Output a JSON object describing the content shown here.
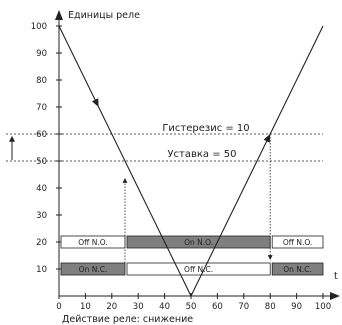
{
  "y_axis_title": "Единицы реле",
  "x_axis_title": "t",
  "caption": "Действие реле: снижение",
  "hysteresis_label": "Гистерезис = 10",
  "setpoint_label": "Уставка = 50",
  "y_ticks": [
    "100",
    "90",
    "80",
    "70",
    "60",
    "50",
    "40",
    "30",
    "20",
    "10"
  ],
  "x_ticks": [
    "0",
    "10",
    "20",
    "30",
    "40",
    "50",
    "60",
    "70",
    "80",
    "90",
    "100"
  ],
  "chart_data": {
    "type": "line",
    "xlim": [
      0,
      100
    ],
    "ylim": [
      0,
      100
    ],
    "series": [
      {
        "x": [
          0,
          50,
          100
        ],
        "y": [
          100,
          0,
          100
        ]
      }
    ],
    "thresholds": {
      "setpoint": 50,
      "upper": 60
    },
    "switch_points_x": [
      25,
      80
    ],
    "no_row": {
      "level": 20,
      "segments": [
        {
          "label": "Off N.O.",
          "x": [
            0,
            25
          ],
          "state": "off"
        },
        {
          "label": "On N.O.",
          "x": [
            25,
            80
          ],
          "state": "on"
        },
        {
          "label": "Off N.O.",
          "x": [
            80,
            100
          ],
          "state": "off"
        }
      ]
    },
    "nc_row": {
      "level": 10,
      "segments": [
        {
          "label": "On N.C.",
          "x": [
            0,
            25
          ],
          "state": "on"
        },
        {
          "label": "Off N.C.",
          "x": [
            25,
            80
          ],
          "state": "off"
        },
        {
          "label": "On N.C.",
          "x": [
            80,
            100
          ],
          "state": "on"
        }
      ]
    },
    "colors": {
      "on": "#7f7f7f",
      "off": "#ffffff",
      "line": "#222222"
    }
  }
}
